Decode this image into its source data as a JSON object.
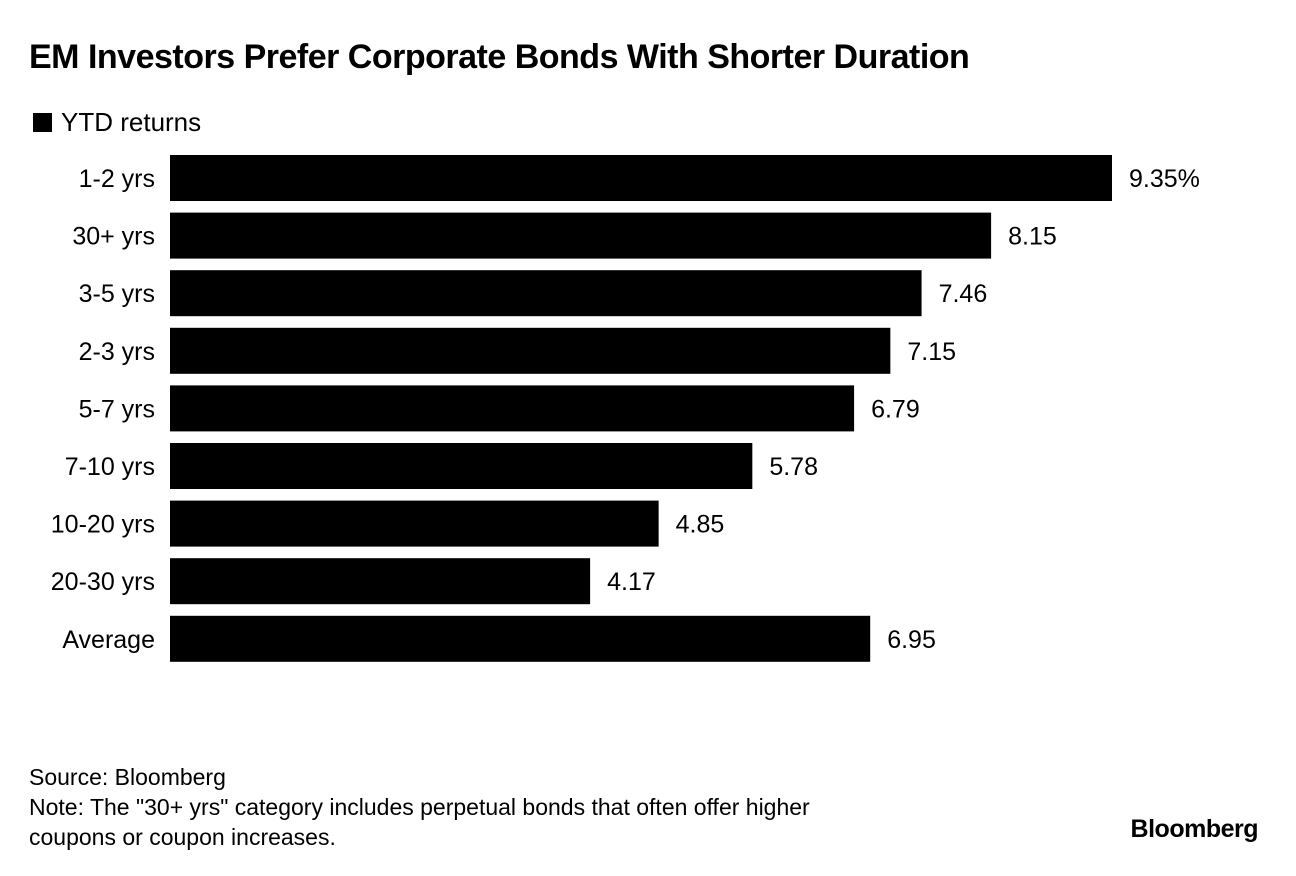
{
  "title": "EM Investors Prefer Corporate Bonds With Shorter Duration",
  "legend": {
    "label": "YTD returns"
  },
  "chart_data": {
    "type": "bar",
    "orientation": "horizontal",
    "title": "EM Investors Prefer Corporate Bonds With Shorter Duration",
    "categories": [
      "1-2 yrs",
      "30+ yrs",
      "3-5 yrs",
      "2-3 yrs",
      "5-7 yrs",
      "7-10 yrs",
      "10-20 yrs",
      "20-30 yrs",
      "Average"
    ],
    "series": [
      {
        "name": "YTD returns",
        "values": [
          9.35,
          8.15,
          7.46,
          7.15,
          6.79,
          5.78,
          4.85,
          4.17,
          6.95
        ]
      }
    ],
    "value_labels": [
      "9.35%",
      "8.15",
      "7.46",
      "7.15",
      "6.79",
      "5.78",
      "4.85",
      "4.17",
      "6.95"
    ],
    "xlim": [
      0,
      9.35
    ],
    "xlabel": "",
    "ylabel": "",
    "grid": false,
    "bar_color": "#000000"
  },
  "footer": {
    "source": "Source: Bloomberg",
    "note_line1": "Note: The \"30+ yrs\" category includes perpetual bonds that often offer higher",
    "note_line2": "coupons or coupon increases."
  },
  "brand": "Bloomberg"
}
